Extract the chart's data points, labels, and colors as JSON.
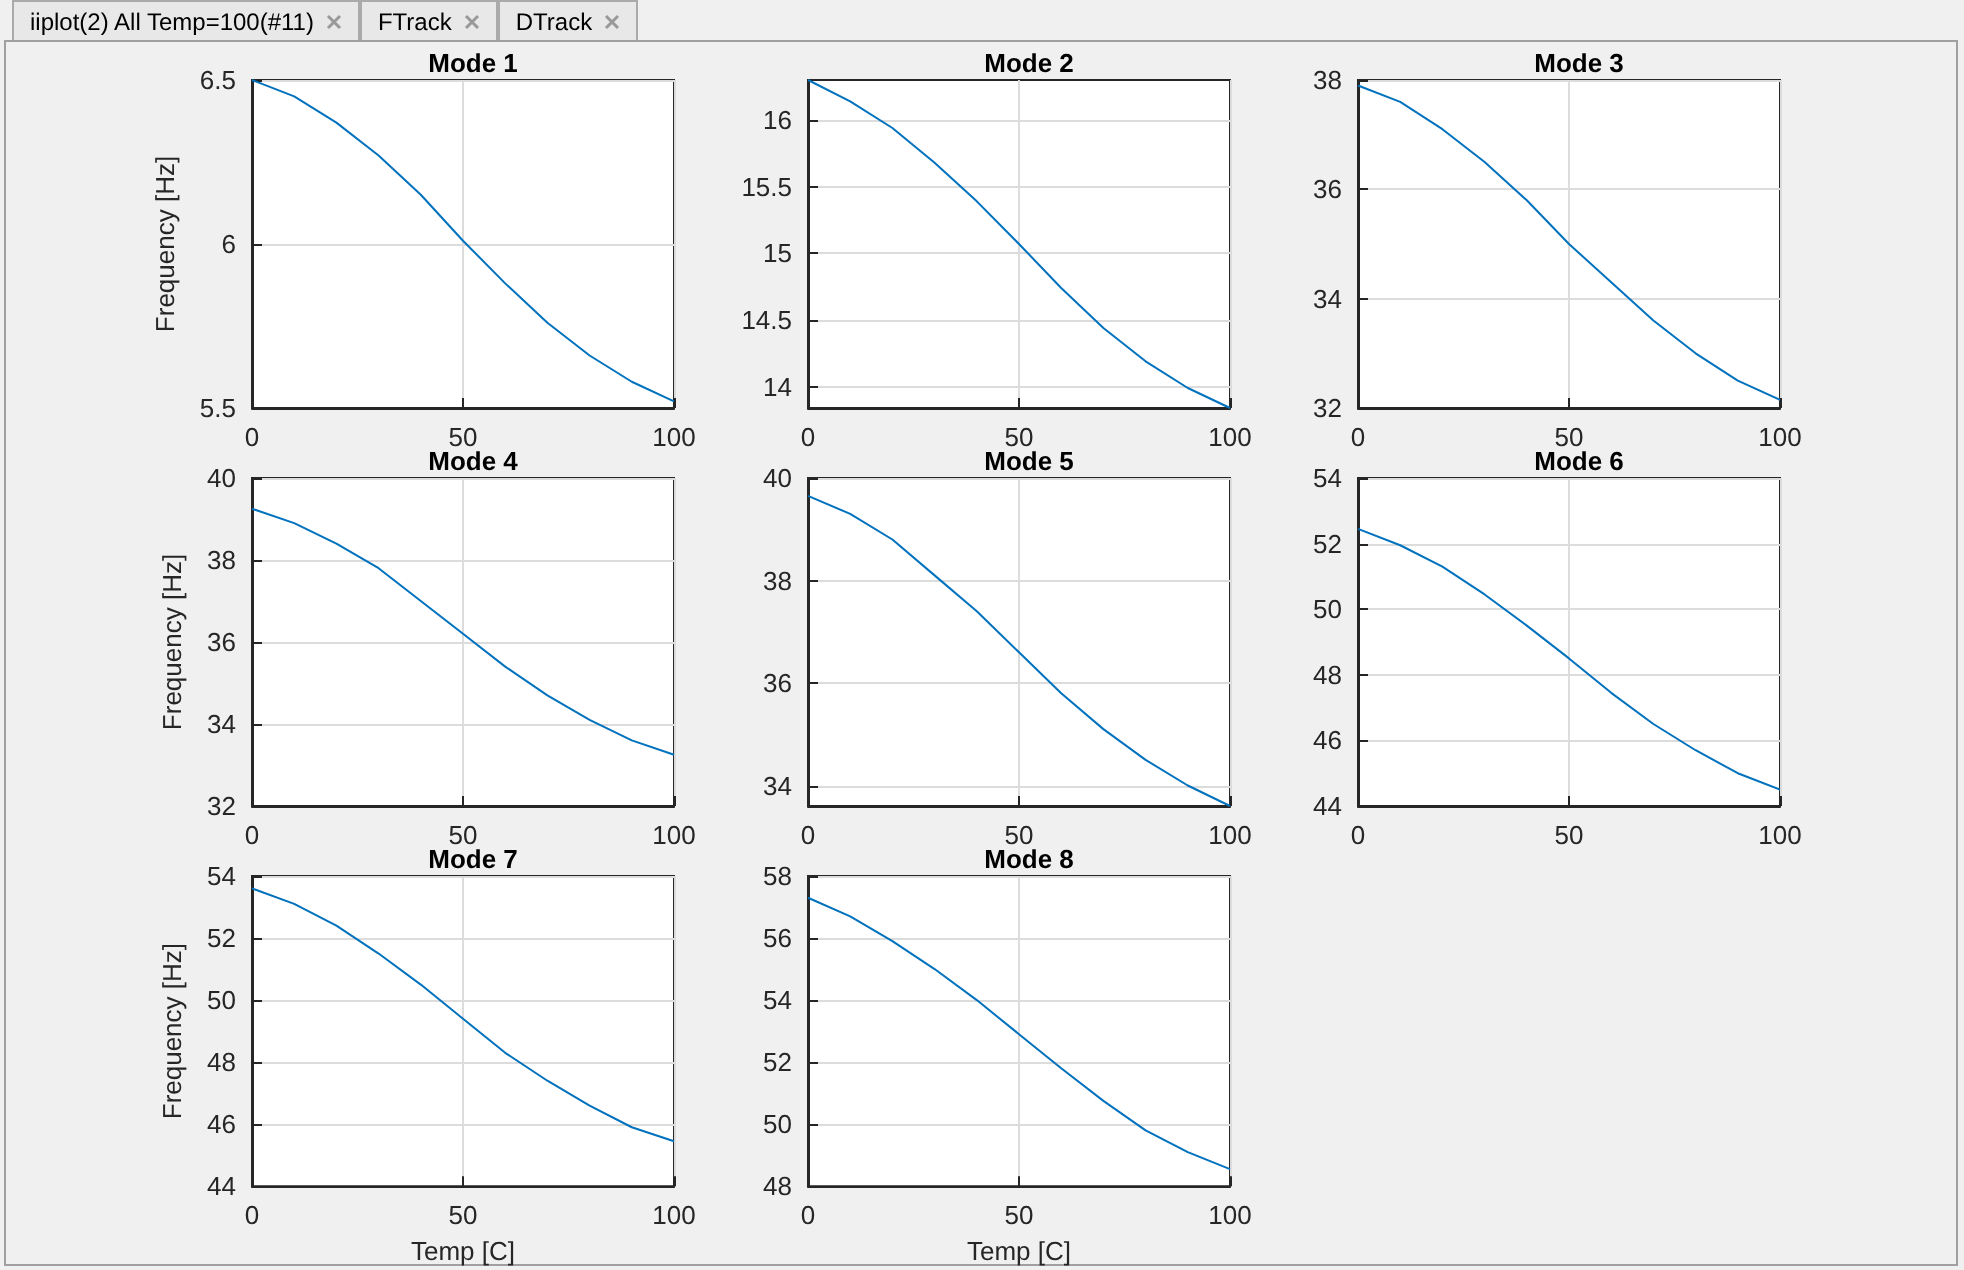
{
  "chart_data": [
    {
      "type": "line",
      "title": "Mode 1",
      "ylabel": "Frequency [Hz]",
      "x": [
        0,
        10,
        20,
        30,
        40,
        50,
        60,
        70,
        80,
        90,
        100
      ],
      "series": [
        {
          "color": "#0072bd",
          "values": [
            6.5,
            6.45,
            6.37,
            6.27,
            6.15,
            6.01,
            5.88,
            5.76,
            5.66,
            5.58,
            5.52
          ]
        }
      ],
      "xlim": [
        0,
        100
      ],
      "xticks": [
        0,
        50,
        100
      ],
      "ylim": [
        5.5,
        6.5
      ],
      "yticks": [
        5.5,
        6,
        6.5
      ],
      "grid": true
    },
    {
      "type": "line",
      "title": "Mode 2",
      "x": [
        0,
        10,
        20,
        30,
        40,
        50,
        60,
        70,
        80,
        90,
        100
      ],
      "series": [
        {
          "color": "#0072bd",
          "values": [
            16.3,
            16.14,
            15.94,
            15.68,
            15.39,
            15.07,
            14.74,
            14.44,
            14.19,
            13.99,
            13.84
          ]
        }
      ],
      "xlim": [
        0,
        100
      ],
      "xticks": [
        0,
        50,
        100
      ],
      "ylim": [
        13.84,
        16.3
      ],
      "yticks": [
        14,
        14.5,
        15,
        15.5,
        16
      ],
      "grid": true
    },
    {
      "type": "line",
      "title": "Mode 3",
      "x": [
        0,
        10,
        20,
        30,
        40,
        50,
        60,
        70,
        80,
        90,
        100
      ],
      "series": [
        {
          "color": "#0072bd",
          "values": [
            37.9,
            37.6,
            37.1,
            36.5,
            35.8,
            35.0,
            34.3,
            33.6,
            33.0,
            32.5,
            32.15
          ]
        }
      ],
      "xlim": [
        0,
        100
      ],
      "xticks": [
        0,
        50,
        100
      ],
      "ylim": [
        32,
        38
      ],
      "yticks": [
        32,
        34,
        36,
        38
      ],
      "grid": true
    },
    {
      "type": "line",
      "title": "Mode 4",
      "ylabel": "Frequency [Hz]",
      "x": [
        0,
        10,
        20,
        30,
        40,
        50,
        60,
        70,
        80,
        90,
        100
      ],
      "series": [
        {
          "color": "#0072bd",
          "values": [
            39.25,
            38.9,
            38.4,
            37.8,
            37.0,
            36.2,
            35.4,
            34.7,
            34.1,
            33.6,
            33.25
          ]
        }
      ],
      "xlim": [
        0,
        100
      ],
      "xticks": [
        0,
        50,
        100
      ],
      "ylim": [
        32,
        40
      ],
      "yticks": [
        32,
        34,
        36,
        38,
        40
      ],
      "grid": true
    },
    {
      "type": "line",
      "title": "Mode 5",
      "x": [
        0,
        10,
        20,
        30,
        40,
        50,
        60,
        70,
        80,
        90,
        100
      ],
      "series": [
        {
          "color": "#0072bd",
          "values": [
            39.65,
            39.3,
            38.8,
            38.1,
            37.4,
            36.6,
            35.8,
            35.1,
            34.5,
            34.0,
            33.6
          ]
        }
      ],
      "xlim": [
        0,
        100
      ],
      "xticks": [
        0,
        50,
        100
      ],
      "ylim": [
        33.6,
        40
      ],
      "yticks": [
        34,
        36,
        38,
        40
      ],
      "grid": true
    },
    {
      "type": "line",
      "title": "Mode 6",
      "x": [
        0,
        10,
        20,
        30,
        40,
        50,
        60,
        70,
        80,
        90,
        100
      ],
      "series": [
        {
          "color": "#0072bd",
          "values": [
            52.45,
            51.95,
            51.3,
            50.45,
            49.5,
            48.5,
            47.45,
            46.5,
            45.7,
            45.0,
            44.5
          ]
        }
      ],
      "xlim": [
        0,
        100
      ],
      "xticks": [
        0,
        50,
        100
      ],
      "ylim": [
        44,
        54
      ],
      "yticks": [
        44,
        46,
        48,
        50,
        52,
        54
      ],
      "grid": true
    },
    {
      "type": "line",
      "title": "Mode 7",
      "xlabel": "Temp [C]",
      "ylabel": "Frequency [Hz]",
      "x": [
        0,
        10,
        20,
        30,
        40,
        50,
        60,
        70,
        80,
        90,
        100
      ],
      "series": [
        {
          "color": "#0072bd",
          "values": [
            53.6,
            53.1,
            52.4,
            51.5,
            50.5,
            49.4,
            48.3,
            47.4,
            46.6,
            45.9,
            45.45
          ]
        }
      ],
      "xlim": [
        0,
        100
      ],
      "xticks": [
        0,
        50,
        100
      ],
      "ylim": [
        44,
        54
      ],
      "yticks": [
        44,
        46,
        48,
        50,
        52,
        54
      ],
      "grid": true
    },
    {
      "type": "line",
      "title": "Mode 8",
      "xlabel": "Temp [C]",
      "x": [
        0,
        10,
        20,
        30,
        40,
        50,
        60,
        70,
        80,
        90,
        100
      ],
      "series": [
        {
          "color": "#0072bd",
          "values": [
            57.3,
            56.7,
            55.9,
            55.0,
            54.0,
            52.9,
            51.8,
            50.75,
            49.8,
            49.1,
            48.55
          ]
        }
      ],
      "xlim": [
        0,
        100
      ],
      "xticks": [
        0,
        50,
        100
      ],
      "ylim": [
        48,
        58
      ],
      "yticks": [
        48,
        50,
        52,
        54,
        56,
        58
      ],
      "grid": true
    },
    {
      "type": "other",
      "annotations": [
        "iiplot(2) All Temp=100(#11)",
        "FTrack",
        "DTrack"
      ]
    }
  ]
}
